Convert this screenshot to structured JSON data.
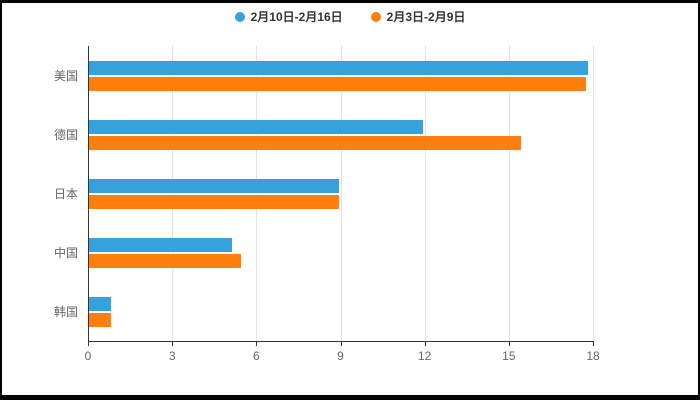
{
  "chart_data": {
    "type": "bar",
    "orientation": "horizontal",
    "title": "",
    "categories": [
      "美国",
      "德国",
      "日本",
      "中国",
      "韩国"
    ],
    "series": [
      {
        "name": "2月10日-2月16日",
        "color": "#36A1DB",
        "values": [
          17.8,
          11.9,
          8.9,
          5.1,
          0.8
        ]
      },
      {
        "name": "2月3日-2月9日",
        "color": "#FF7F0E",
        "values": [
          17.7,
          15.4,
          8.9,
          5.4,
          0.8
        ]
      }
    ],
    "xlim": [
      0,
      18
    ],
    "xticks": [
      0,
      3,
      6,
      9,
      12,
      15,
      18
    ],
    "grid": true,
    "legend_position": "top",
    "axis_colors": {
      "axis_line": "#333333",
      "grid_line": "#E3E3E3",
      "tick_label": "#666666",
      "category_label": "#666666",
      "legend_text": "#333333"
    },
    "canvas_background": "#ffffff",
    "page_background": "#000000"
  }
}
